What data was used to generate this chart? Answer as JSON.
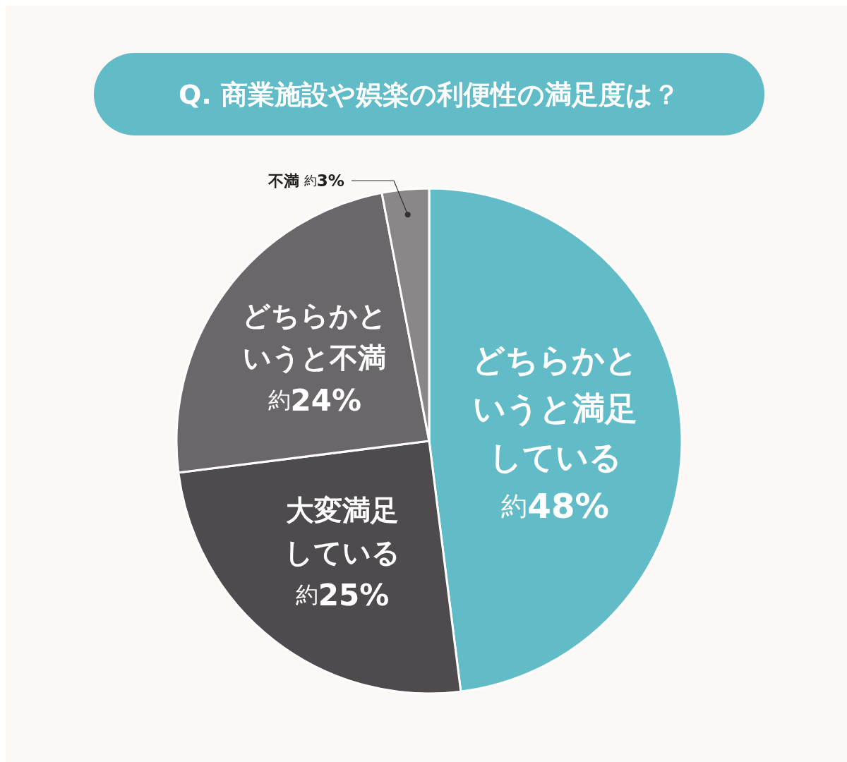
{
  "chart_data": {
    "type": "pie",
    "title": "Q. 商業施設や娯楽の利便性の満足度は？",
    "categories": [
      "どちらかというと満足している",
      "大変満足している",
      "どちらかというと不満",
      "不満"
    ],
    "values": [
      48,
      25,
      24,
      3
    ],
    "value_labels": [
      "約48%",
      "約25%",
      "約24%",
      "約3%"
    ],
    "colors": [
      "#62bcc8",
      "#4e4a4d",
      "#6a666a",
      "#8b8687"
    ]
  }
}
